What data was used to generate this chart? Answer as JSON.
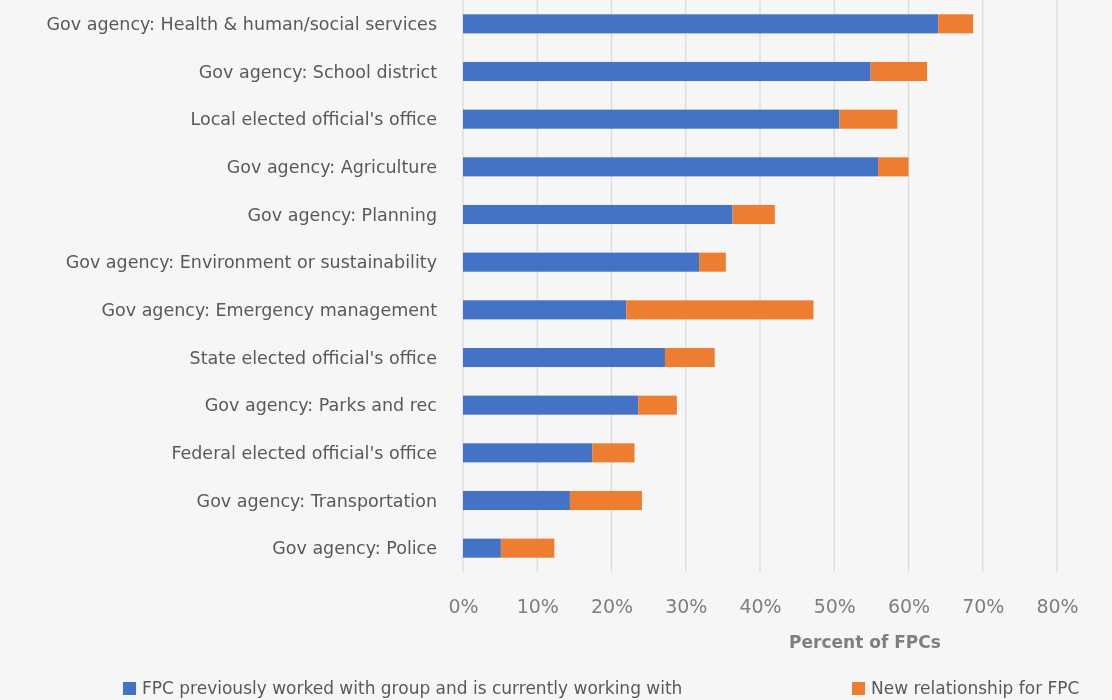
{
  "chart_data": {
    "type": "bar",
    "orientation": "horizontal",
    "stacked": true,
    "xlabel": "Percent of FPCs",
    "categories": [
      "Gov agency: Health & human/social services",
      "Gov agency: School district",
      "Local elected official's office",
      "Gov agency: Agriculture",
      "Gov agency: Planning",
      "Gov agency: Environment or sustainability",
      "Gov agency: Emergency management",
      "State elected official's office",
      "Gov agency: Parks and rec",
      "Federal elected official's office",
      "Gov agency: Transportation",
      "Gov agency: Police"
    ],
    "series": [
      {
        "name": "FPC previously worked with group and is currently working with",
        "color": "#4472c4",
        "values": [
          64.0,
          54.9,
          50.7,
          55.9,
          36.3,
          31.8,
          22.0,
          27.2,
          23.6,
          17.4,
          14.4,
          5.1
        ]
      },
      {
        "name": "New relationship for FPC",
        "color": "#ed7d31",
        "values": [
          4.7,
          7.6,
          7.8,
          4.1,
          5.7,
          3.6,
          25.2,
          6.7,
          5.2,
          5.7,
          9.7,
          7.2
        ]
      }
    ],
    "xlim": [
      0,
      80
    ],
    "xticks": [
      {
        "value": 0,
        "label": "0%"
      },
      {
        "value": 10,
        "label": "10%"
      },
      {
        "value": 20,
        "label": "20%"
      },
      {
        "value": 30,
        "label": "30%"
      },
      {
        "value": 40,
        "label": "40%"
      },
      {
        "value": 50,
        "label": "50%"
      },
      {
        "value": 60,
        "label": "60%"
      },
      {
        "value": 70,
        "label": "70%"
      },
      {
        "value": 80,
        "label": "80%"
      }
    ],
    "grid": "x",
    "legend": "bottom"
  }
}
